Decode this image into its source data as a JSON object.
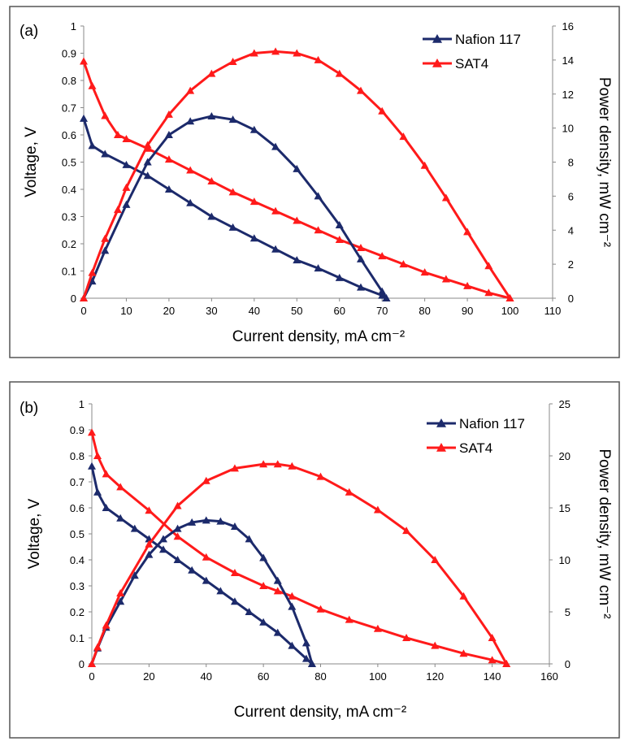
{
  "chart_data": [
    {
      "type": "line",
      "panel_label": "(a)",
      "xlabel": "Current density, mA cm⁻²",
      "ylabel": "Voltage, V",
      "y2label": "Power density, mW cm⁻²",
      "xlim": [
        0,
        110
      ],
      "xticks": [
        0,
        10,
        20,
        30,
        40,
        50,
        60,
        70,
        80,
        90,
        100,
        110
      ],
      "ylim": [
        0,
        1
      ],
      "yticks": [
        0,
        0.1,
        0.2,
        0.3,
        0.4,
        0.5,
        0.6,
        0.7,
        0.8,
        0.9,
        1
      ],
      "y2lim": [
        0,
        16
      ],
      "y2ticks": [
        0,
        2,
        4,
        6,
        8,
        10,
        12,
        14,
        16
      ],
      "legend": "upper right",
      "series": [
        {
          "name": "Nafion 117",
          "color": "#1c2a6b",
          "x": [
            0,
            2,
            5,
            10,
            15,
            20,
            25,
            30,
            35,
            40,
            45,
            50,
            55,
            60,
            65,
            70,
            71
          ],
          "values": [
            0.66,
            0.56,
            0.53,
            0.49,
            0.45,
            0.4,
            0.35,
            0.3,
            0.26,
            0.22,
            0.18,
            0.14,
            0.11,
            0.075,
            0.04,
            0.01,
            0
          ]
        },
        {
          "name": "SAT4",
          "color": "#ff1a1a",
          "x": [
            0,
            2,
            5,
            8,
            10,
            15,
            20,
            25,
            30,
            35,
            40,
            45,
            50,
            55,
            60,
            65,
            70,
            75,
            80,
            85,
            90,
            95,
            100
          ],
          "values": [
            0.87,
            0.78,
            0.67,
            0.6,
            0.585,
            0.55,
            0.51,
            0.47,
            0.43,
            0.39,
            0.355,
            0.32,
            0.285,
            0.25,
            0.215,
            0.185,
            0.155,
            0.125,
            0.095,
            0.07,
            0.045,
            0.02,
            0
          ]
        },
        {
          "color": "#1c2a6b",
          "axis": "y2",
          "x": [
            0,
            2,
            5,
            10,
            15,
            20,
            25,
            30,
            35,
            40,
            45,
            50,
            55,
            60,
            65,
            70,
            71
          ],
          "values": [
            0,
            1.0,
            2.8,
            5.5,
            8.0,
            9.6,
            10.4,
            10.7,
            10.5,
            9.9,
            8.9,
            7.6,
            6.0,
            4.3,
            2.3,
            0.4,
            0
          ]
        },
        {
          "color": "#ff1a1a",
          "axis": "y2",
          "x": [
            0,
            2,
            5,
            8,
            10,
            15,
            20,
            25,
            30,
            35,
            40,
            45,
            50,
            55,
            60,
            65,
            70,
            75,
            80,
            85,
            90,
            95,
            100
          ],
          "values": [
            0,
            1.5,
            3.5,
            5.2,
            6.5,
            9.0,
            10.8,
            12.2,
            13.2,
            13.9,
            14.4,
            14.5,
            14.4,
            14.0,
            13.2,
            12.2,
            11.0,
            9.5,
            7.8,
            5.9,
            3.9,
            1.9,
            0
          ]
        }
      ]
    },
    {
      "type": "line",
      "panel_label": "(b)",
      "xlabel": "Current density, mA cm⁻²",
      "ylabel": "Voltage, V",
      "y2label": "Power density, mW cm⁻²",
      "xlim": [
        0,
        160
      ],
      "xticks": [
        0,
        20,
        40,
        60,
        80,
        100,
        120,
        140,
        160
      ],
      "ylim": [
        0,
        1
      ],
      "yticks": [
        0,
        0.1,
        0.2,
        0.3,
        0.4,
        0.5,
        0.6,
        0.7,
        0.8,
        0.9,
        1
      ],
      "y2lim": [
        0,
        25
      ],
      "y2ticks": [
        0,
        5,
        10,
        15,
        20,
        25
      ],
      "legend": "upper right",
      "series": [
        {
          "name": "Nafion 117",
          "color": "#1c2a6b",
          "x": [
            0,
            2,
            5,
            10,
            15,
            20,
            25,
            30,
            35,
            40,
            45,
            50,
            55,
            60,
            65,
            70,
            75,
            77
          ],
          "values": [
            0.76,
            0.66,
            0.6,
            0.56,
            0.52,
            0.48,
            0.44,
            0.4,
            0.36,
            0.32,
            0.28,
            0.24,
            0.2,
            0.16,
            0.12,
            0.07,
            0.02,
            0
          ]
        },
        {
          "name": "SAT4",
          "color": "#ff1a1a",
          "x": [
            0,
            2,
            5,
            10,
            20,
            30,
            40,
            50,
            60,
            65,
            70,
            80,
            90,
            100,
            110,
            120,
            130,
            140,
            145
          ],
          "values": [
            0.89,
            0.8,
            0.73,
            0.68,
            0.59,
            0.49,
            0.41,
            0.35,
            0.3,
            0.28,
            0.26,
            0.21,
            0.17,
            0.135,
            0.1,
            0.07,
            0.04,
            0.015,
            0
          ]
        },
        {
          "color": "#1c2a6b",
          "axis": "y2",
          "x": [
            0,
            2,
            5,
            10,
            15,
            20,
            25,
            30,
            35,
            40,
            45,
            50,
            55,
            60,
            65,
            70,
            75,
            77
          ],
          "values": [
            0,
            1.5,
            3.5,
            6.0,
            8.5,
            10.5,
            12.0,
            13.0,
            13.6,
            13.8,
            13.7,
            13.2,
            12.0,
            10.2,
            8.0,
            5.5,
            2.0,
            0
          ]
        },
        {
          "color": "#ff1a1a",
          "axis": "y2",
          "x": [
            0,
            2,
            5,
            10,
            20,
            30,
            40,
            50,
            60,
            65,
            70,
            80,
            90,
            100,
            110,
            120,
            130,
            140,
            145
          ],
          "values": [
            0,
            1.6,
            3.7,
            6.8,
            11.5,
            15.2,
            17.6,
            18.8,
            19.2,
            19.2,
            19.0,
            18.0,
            16.5,
            14.8,
            12.8,
            10.0,
            6.5,
            2.5,
            0
          ]
        }
      ]
    }
  ]
}
